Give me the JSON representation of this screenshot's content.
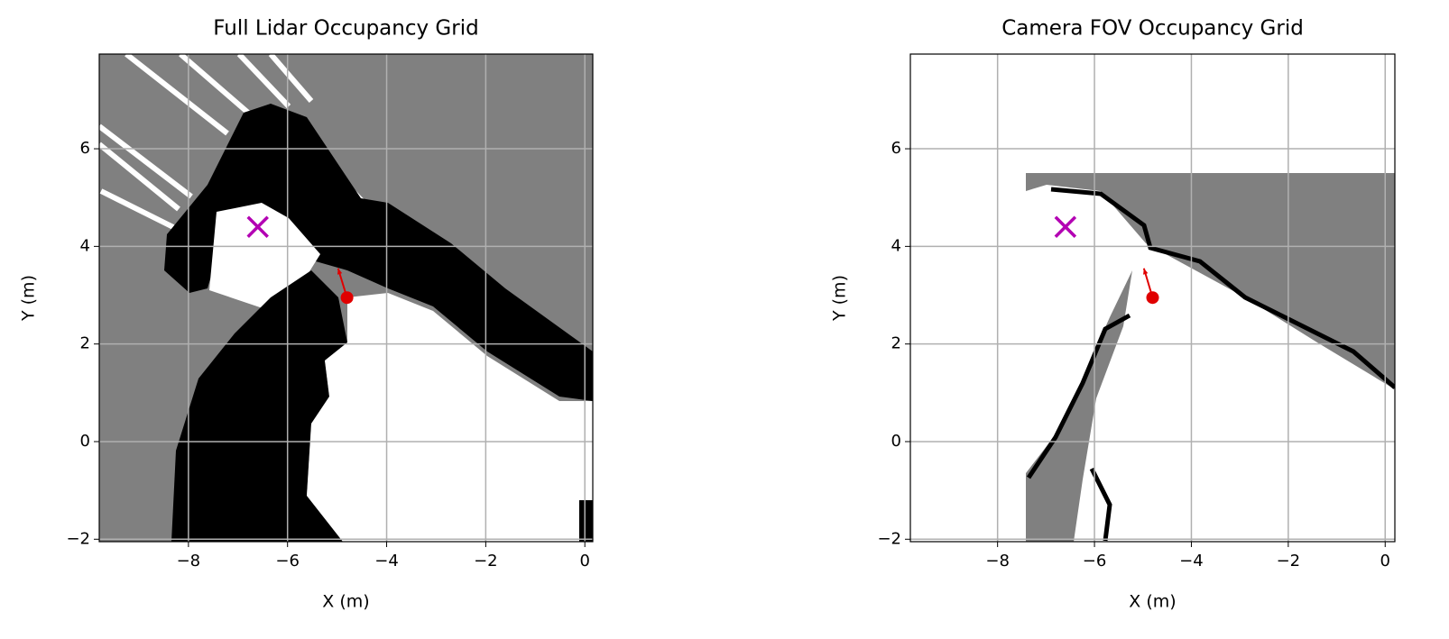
{
  "chart_data": [
    {
      "type": "occupancy",
      "title": "Full Lidar Occupancy Grid",
      "xlabel": "X (m)",
      "ylabel": "Y (m)",
      "xlim": [
        -9.8,
        0.16
      ],
      "ylim": [
        -2.05,
        7.94
      ],
      "xticks": [
        {
          "value": -8,
          "label": "−8"
        },
        {
          "value": -6,
          "label": "−6"
        },
        {
          "value": -4,
          "label": "−4"
        },
        {
          "value": -2,
          "label": "−2"
        },
        0
      ],
      "yticks": [
        {
          "value": -2,
          "label": "−2"
        },
        0,
        2,
        4,
        6
      ],
      "grid": true,
      "points": [
        {
          "x": -6.6,
          "y": 4.4,
          "color": "#b300b3",
          "marker": "x"
        },
        {
          "x": -4.8,
          "y": 2.95,
          "color": "#e00000",
          "marker": "o",
          "dx": -0.18,
          "dy": 0.6
        }
      ]
    },
    {
      "type": "occupancy",
      "title": "Camera FOV Occupancy Grid",
      "xlabel": "X (m)",
      "ylabel": "Y (m)",
      "xlim": [
        -9.8,
        0.2
      ],
      "ylim": [
        -2.05,
        7.94
      ],
      "xticks": [
        {
          "value": -8,
          "label": "−8"
        },
        {
          "value": -6,
          "label": "−6"
        },
        {
          "value": -4,
          "label": "−4"
        },
        {
          "value": -2,
          "label": "−2"
        },
        0
      ],
      "yticks": [
        {
          "value": -2,
          "label": "−2"
        },
        0,
        2,
        4,
        6
      ],
      "grid": true,
      "points": [
        {
          "x": -6.6,
          "y": 4.4,
          "color": "#b300b3",
          "marker": "x"
        },
        {
          "x": -4.8,
          "y": 2.95,
          "color": "#e00000",
          "marker": "o",
          "dx": -0.18,
          "dy": 0.6
        }
      ]
    }
  ]
}
